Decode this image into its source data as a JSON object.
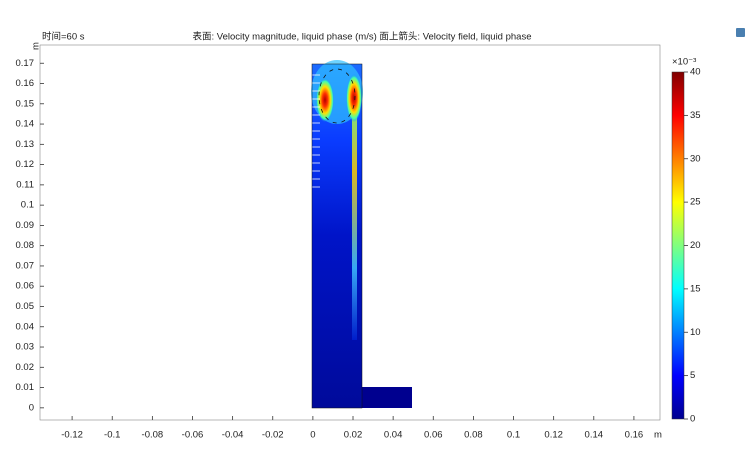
{
  "chart_data": {
    "type": "surface",
    "time_label": "时间=60 s",
    "title": "表面: Velocity magnitude, liquid phase (m/s)  面上箭头: Velocity field, liquid phase",
    "xlabel": "m",
    "ylabel": "m",
    "xlim": [
      -0.136,
      0.173
    ],
    "xticks": [
      -0.12,
      -0.1,
      -0.08,
      -0.06,
      -0.04,
      -0.02,
      0,
      0.02,
      0.04,
      0.06,
      0.08,
      0.1,
      0.12,
      0.14,
      0.16
    ],
    "ylim": [
      -0.006,
      0.179
    ],
    "yticks": [
      0,
      0.01,
      0.02,
      0.03,
      0.04,
      0.05,
      0.06,
      0.07,
      0.08,
      0.09,
      0.1,
      0.11,
      0.12,
      0.13,
      0.14,
      0.15,
      0.16,
      0.17
    ],
    "colorbar_label": "×10⁻³",
    "clim": [
      0,
      40
    ],
    "cticks": [
      0,
      5,
      10,
      15,
      20,
      25,
      30,
      35,
      40
    ]
  }
}
